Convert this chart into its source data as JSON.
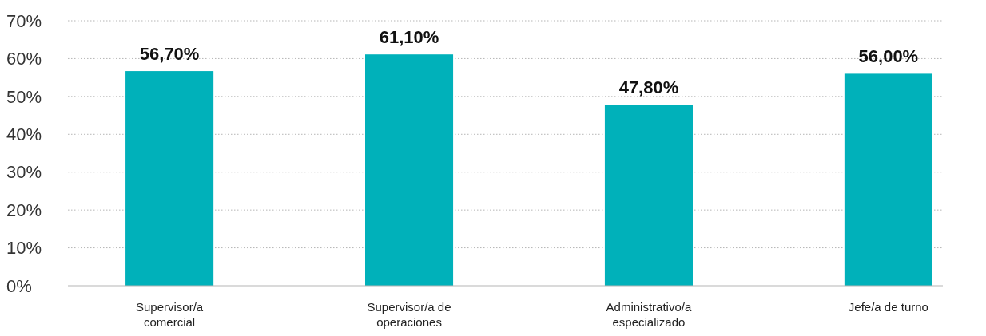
{
  "chart_data": {
    "type": "bar",
    "categories": [
      "Supervisor/a comercial",
      "Supervisor/a de operaciones",
      "Administrativo/a especializado",
      "Jefe/a de turno"
    ],
    "values": [
      56.7,
      61.1,
      47.8,
      56.0
    ],
    "value_labels": [
      "56,70%",
      "61,10%",
      "47,80%",
      "56,00%"
    ],
    "color": "#00b1ba",
    "ylim": [
      0,
      70
    ],
    "yticks": [
      {
        "value": 0,
        "label": "0%"
      },
      {
        "value": 10,
        "label": "10%"
      },
      {
        "value": 20,
        "label": "20%"
      },
      {
        "value": 30,
        "label": "30%"
      },
      {
        "value": 40,
        "label": "40%"
      },
      {
        "value": 50,
        "label": "50%"
      },
      {
        "value": 60,
        "label": "60%"
      },
      {
        "value": 70,
        "label": "70%"
      }
    ],
    "grid": "y"
  }
}
